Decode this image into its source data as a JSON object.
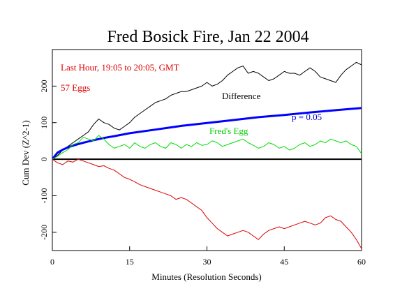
{
  "chart_data": {
    "type": "line",
    "title": "Fred Bosick Fire, Jan 22 2004",
    "xlabel": "Minutes (Resolution Seconds)",
    "ylabel": "Cum Dev (Z^2-1)",
    "xlim": [
      0,
      60
    ],
    "ylim": [
      -250,
      300
    ],
    "x_ticks": [
      0,
      15,
      30,
      45,
      60
    ],
    "y_ticks": [
      -200,
      -100,
      0,
      100,
      200
    ],
    "grid": false,
    "annotations": {
      "period": "Last Hour, 19:05 to 20:05, GMT",
      "eggs": "57 Eggs"
    },
    "series": [
      {
        "name": "Difference",
        "color": "#000000",
        "x": [
          0,
          1,
          2,
          3,
          4,
          5,
          6,
          7,
          8,
          9,
          10,
          11,
          12,
          13,
          14,
          15,
          16,
          17,
          18,
          19,
          20,
          21,
          22,
          23,
          24,
          25,
          26,
          27,
          28,
          29,
          30,
          31,
          32,
          33,
          34,
          35,
          36,
          37,
          38,
          39,
          40,
          41,
          42,
          43,
          44,
          45,
          46,
          47,
          48,
          49,
          50,
          51,
          52,
          53,
          54,
          55,
          56,
          57,
          58,
          59,
          60
        ],
        "values": [
          0,
          10,
          25,
          35,
          45,
          55,
          65,
          75,
          95,
          110,
          100,
          95,
          85,
          80,
          90,
          100,
          115,
          125,
          135,
          145,
          155,
          160,
          165,
          175,
          180,
          185,
          185,
          190,
          195,
          200,
          210,
          200,
          205,
          215,
          230,
          240,
          250,
          255,
          235,
          240,
          235,
          225,
          215,
          220,
          230,
          240,
          235,
          235,
          230,
          240,
          250,
          240,
          225,
          220,
          215,
          210,
          230,
          245,
          255,
          265,
          258
        ]
      },
      {
        "name": "p = 0.05",
        "color": "#0000ff",
        "x": [
          0,
          1,
          2,
          3,
          4,
          5,
          6,
          8,
          10,
          12,
          15,
          20,
          25,
          30,
          35,
          40,
          45,
          50,
          55,
          60
        ],
        "values": [
          0,
          18,
          26,
          32,
          37,
          41,
          45,
          52,
          58,
          63,
          71,
          81,
          91,
          99,
          107,
          115,
          121,
          128,
          134,
          140
        ]
      },
      {
        "name": "Fred's Egg",
        "color": "#00dd00",
        "x": [
          0,
          1,
          2,
          3,
          4,
          5,
          6,
          7,
          8,
          9,
          10,
          11,
          12,
          13,
          14,
          15,
          16,
          17,
          18,
          19,
          20,
          21,
          22,
          23,
          24,
          25,
          26,
          27,
          28,
          29,
          30,
          31,
          32,
          33,
          34,
          35,
          36,
          37,
          38,
          39,
          40,
          41,
          42,
          43,
          44,
          45,
          46,
          47,
          48,
          49,
          50,
          51,
          52,
          53,
          54,
          55,
          56,
          57,
          58,
          59,
          60
        ],
        "values": [
          0,
          8,
          18,
          26,
          40,
          45,
          60,
          55,
          50,
          65,
          55,
          40,
          30,
          35,
          40,
          30,
          45,
          35,
          30,
          40,
          45,
          35,
          30,
          45,
          40,
          30,
          40,
          35,
          45,
          38,
          40,
          50,
          45,
          35,
          40,
          45,
          50,
          55,
          45,
          38,
          30,
          35,
          45,
          40,
          30,
          35,
          25,
          30,
          40,
          45,
          35,
          40,
          50,
          45,
          55,
          50,
          45,
          50,
          40,
          35,
          15
        ]
      },
      {
        "name": "",
        "color": "#dd0000",
        "x": [
          0,
          1,
          2,
          3,
          4,
          5,
          6,
          7,
          8,
          9,
          10,
          11,
          12,
          13,
          14,
          15,
          16,
          17,
          18,
          19,
          20,
          21,
          22,
          23,
          24,
          25,
          26,
          27,
          28,
          29,
          30,
          31,
          32,
          33,
          34,
          35,
          36,
          37,
          38,
          39,
          40,
          41,
          42,
          43,
          44,
          45,
          46,
          47,
          48,
          49,
          50,
          51,
          52,
          53,
          54,
          55,
          56,
          57,
          58,
          59,
          60
        ],
        "values": [
          0,
          -10,
          -15,
          -5,
          -8,
          0,
          -5,
          -10,
          -15,
          -20,
          -18,
          -25,
          -30,
          -40,
          -50,
          -55,
          -62,
          -70,
          -75,
          -80,
          -85,
          -90,
          -95,
          -100,
          -110,
          -105,
          -110,
          -120,
          -130,
          -140,
          -160,
          -175,
          -190,
          -200,
          -210,
          -205,
          -200,
          -195,
          -200,
          -210,
          -220,
          -205,
          -195,
          -190,
          -185,
          -190,
          -185,
          -180,
          -175,
          -170,
          -175,
          -180,
          -175,
          -160,
          -155,
          -165,
          -170,
          -185,
          -200,
          -220,
          -245
        ]
      }
    ],
    "labels": {
      "difference": "Difference",
      "p_value": "p = 0.05",
      "freds_egg": "Fred's Egg"
    }
  }
}
